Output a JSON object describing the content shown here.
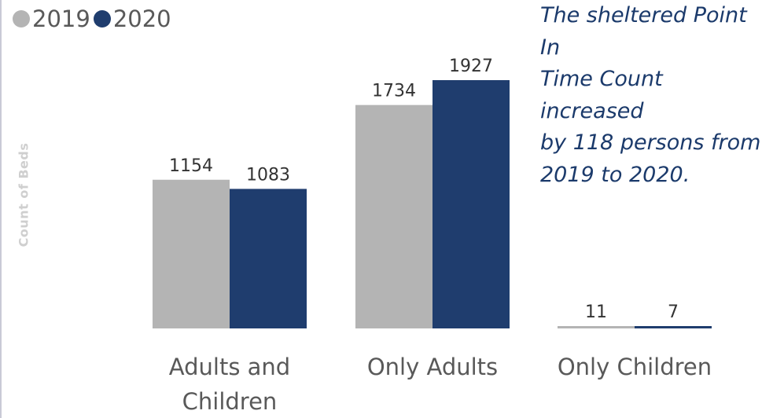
{
  "chart_data": {
    "type": "bar",
    "categories": [
      "Adults and Children",
      "Only Adults",
      "Only Children"
    ],
    "category_lines": [
      [
        "Adults and",
        "Children"
      ],
      [
        "Only Adults"
      ],
      [
        "Only Children"
      ]
    ],
    "series": [
      {
        "name": "2019",
        "color": "#b4b4b4",
        "values": [
          1154,
          1734,
          11
        ]
      },
      {
        "name": "2020",
        "color": "#1f3d6e",
        "values": [
          1083,
          1927,
          7
        ]
      }
    ],
    "ylabel": "Count of Beds",
    "ylim": [
      0,
      1927
    ],
    "grid": false,
    "legend_position": "top-left",
    "annotation": "The sheltered Point In Time Count increased by 118 persons from 2019 to 2020.",
    "annotation_lines": [
      "The sheltered Point In",
      "Time Count increased",
      "by 118 persons from",
      "2019 to 2020."
    ]
  }
}
